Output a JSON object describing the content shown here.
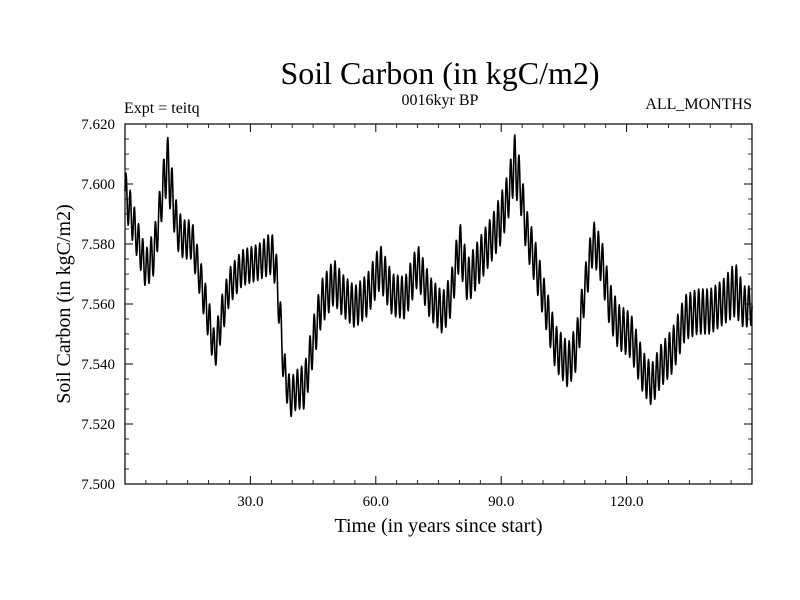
{
  "chart_data": {
    "type": "line",
    "title": "Soil Carbon (in kgC/m2)",
    "subtitle": "0016kyr BP",
    "annotation_left": "Expt = teitq",
    "annotation_right": "ALL_MONTHS",
    "xlabel": "Time (in years since start)",
    "ylabel": "Soil Carbon (in kgC/m2)",
    "xlim": [
      0,
      150
    ],
    "ylim": [
      7.5,
      7.62
    ],
    "x_ticks": [
      30,
      60,
      90,
      120
    ],
    "x_tick_labels": [
      "30.0",
      "60.0",
      "90.0",
      "120.0"
    ],
    "y_ticks": [
      7.5,
      7.52,
      7.54,
      7.56,
      7.58,
      7.6,
      7.62
    ],
    "y_tick_labels": [
      "7.500",
      "7.520",
      "7.540",
      "7.560",
      "7.580",
      "7.600",
      "7.620"
    ],
    "series": [
      {
        "name": "Soil Carbon",
        "envelope_x": [
          0,
          3,
          5,
          7,
          9,
          10,
          11,
          12.5,
          14,
          16,
          18,
          20,
          21.5,
          23,
          25,
          28,
          32,
          35,
          36,
          37,
          38,
          39.5,
          41,
          43,
          45,
          47,
          50,
          52,
          55,
          58,
          61,
          64,
          67,
          70,
          73,
          76,
          78,
          80,
          82,
          84,
          86,
          88,
          90,
          92,
          93,
          94.5,
          96,
          98,
          100,
          103,
          106,
          108,
          110,
          112,
          114,
          116,
          118,
          121,
          124,
          126,
          128,
          131,
          134,
          137,
          140,
          143,
          146,
          148,
          150
        ],
        "envelope_lo": [
          7.59,
          7.575,
          7.565,
          7.57,
          7.59,
          7.597,
          7.59,
          7.578,
          7.575,
          7.575,
          7.562,
          7.548,
          7.538,
          7.548,
          7.56,
          7.566,
          7.568,
          7.57,
          7.566,
          7.55,
          7.532,
          7.522,
          7.525,
          7.525,
          7.54,
          7.553,
          7.56,
          7.556,
          7.552,
          7.556,
          7.565,
          7.556,
          7.555,
          7.566,
          7.555,
          7.55,
          7.556,
          7.572,
          7.56,
          7.565,
          7.57,
          7.575,
          7.58,
          7.59,
          7.597,
          7.592,
          7.577,
          7.567,
          7.556,
          7.538,
          7.532,
          7.538,
          7.558,
          7.574,
          7.567,
          7.552,
          7.545,
          7.542,
          7.53,
          7.526,
          7.532,
          7.537,
          7.548,
          7.55,
          7.55,
          7.553,
          7.556,
          7.552,
          7.553
        ],
        "envelope_hi": [
          7.605,
          7.588,
          7.578,
          7.585,
          7.605,
          7.618,
          7.608,
          7.592,
          7.588,
          7.588,
          7.575,
          7.562,
          7.55,
          7.562,
          7.572,
          7.578,
          7.58,
          7.584,
          7.58,
          7.565,
          7.545,
          7.535,
          7.538,
          7.54,
          7.555,
          7.568,
          7.575,
          7.57,
          7.566,
          7.57,
          7.58,
          7.57,
          7.569,
          7.58,
          7.569,
          7.564,
          7.57,
          7.588,
          7.575,
          7.58,
          7.585,
          7.59,
          7.597,
          7.605,
          7.618,
          7.608,
          7.592,
          7.582,
          7.57,
          7.553,
          7.547,
          7.553,
          7.572,
          7.588,
          7.582,
          7.567,
          7.56,
          7.557,
          7.544,
          7.54,
          7.546,
          7.552,
          7.563,
          7.565,
          7.565,
          7.568,
          7.574,
          7.566,
          7.566
        ],
        "oscillation_period_years": 1
      }
    ]
  }
}
